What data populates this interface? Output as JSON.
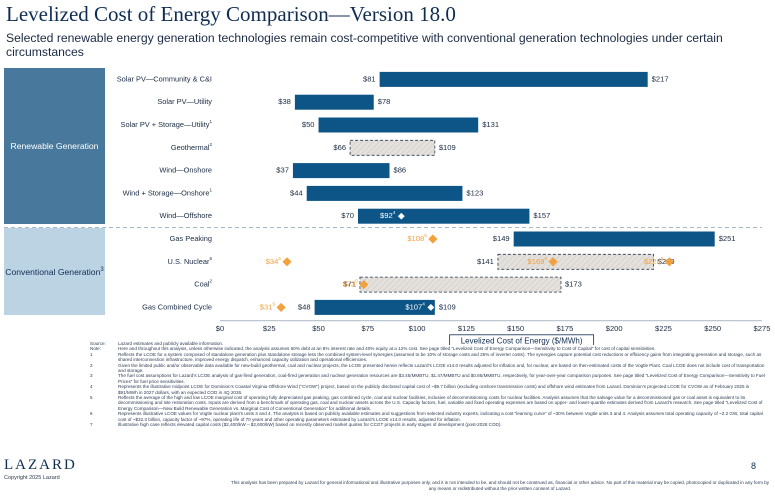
{
  "page": {
    "title": "Levelized Cost of Energy Comparison—Version 18.0",
    "subtitle": "Selected renewable energy generation technologies remain cost-competitive with conventional generation technologies under certain circumstances",
    "groups": {
      "renewable": "Renewable Generation",
      "conventional": "Conventional Generation",
      "conventional_sup": "3"
    },
    "page_number": "8",
    "logo": "LAZARD",
    "copyright": "Copyright 2025 Lazard",
    "footer": "This analysis has been prepared by Lazard for general informational and illustrative purposes only, and it is not intended to be, and should not be construed as, financial or other advice. No part of this material may be copied, photocopied or duplicated in any form by any means or redistributed without the prior written consent of Lazard."
  },
  "chart_data": {
    "type": "bar",
    "subtype": "floating-range",
    "title": "Levelized Cost of Energy Comparison—Version 18.0",
    "xlabel": "Levelized Cost of Energy ($/MWh)",
    "xlim": [
      0,
      275
    ],
    "ticks": [
      "$0",
      "$25",
      "$50",
      "$75",
      "$100",
      "$125",
      "$150",
      "$175",
      "$200",
      "$225",
      "$250",
      "$275"
    ],
    "tick_values": [
      0,
      25,
      50,
      75,
      100,
      125,
      150,
      175,
      200,
      225,
      250,
      275
    ],
    "colors": {
      "bar": "#0d5587",
      "hatched_fill": "#e2dfdb",
      "marker_diamond": "#f2a13d",
      "marker_white": "#ffffff"
    },
    "rows": [
      {
        "label": "Solar PV—Community & C&I",
        "sup": "",
        "low": 81,
        "high": 217,
        "low_label": "$81",
        "high_label": "$217",
        "style": "solid"
      },
      {
        "label": "Solar PV—Utility",
        "sup": "",
        "low": 38,
        "high": 78,
        "low_label": "$38",
        "high_label": "$78",
        "style": "solid"
      },
      {
        "label": "Solar PV + Storage—Utility",
        "sup": "1",
        "low": 50,
        "high": 131,
        "low_label": "$50",
        "high_label": "$131",
        "style": "solid"
      },
      {
        "label": "Geothermal",
        "sup": "2",
        "low": 66,
        "high": 109,
        "low_label": "$66",
        "high_label": "$109",
        "style": "dashed"
      },
      {
        "label": "Wind—Onshore",
        "sup": "",
        "low": 37,
        "high": 86,
        "low_label": "$37",
        "high_label": "$86",
        "style": "solid"
      },
      {
        "label": "Wind + Storage—Onshore",
        "sup": "1",
        "low": 44,
        "high": 123,
        "low_label": "$44",
        "high_label": "$123",
        "style": "solid"
      },
      {
        "label": "Wind—Offshore",
        "sup": "",
        "low": 70,
        "high": 157,
        "low_label": "$70",
        "high_label": "$157",
        "style": "solid",
        "markers": [
          {
            "value": 92,
            "label": "$92",
            "sup": "4",
            "kind": "white"
          }
        ]
      },
      {
        "label": "Gas Peaking",
        "sup": "",
        "low": 149,
        "high": 251,
        "low_label": "$149",
        "high_label": "$251",
        "style": "solid",
        "markers": [
          {
            "value": 108,
            "label": "$108",
            "sup": "5",
            "kind": "orange"
          }
        ]
      },
      {
        "label": "U.S. Nuclear",
        "sup": "6",
        "low": 141,
        "high": 220,
        "low_label": "$141",
        "high_label": "$220",
        "style": "dashed",
        "markers": [
          {
            "value": 34,
            "label": "$34",
            "sup": "5",
            "kind": "orange"
          },
          {
            "value": 169,
            "label": "$169",
            "sup": "6",
            "kind": "orange"
          },
          {
            "value": 228,
            "label": "$228",
            "sup": "6",
            "kind": "orange"
          }
        ]
      },
      {
        "label": "Coal",
        "sup": "2",
        "low": 71,
        "high": 173,
        "low_label": "$71",
        "high_label": "$173",
        "style": "dashed",
        "markers": [
          {
            "value": 73,
            "label": "$73",
            "sup": "5",
            "kind": "orange"
          }
        ]
      },
      {
        "label": "Gas Combined Cycle",
        "sup": "",
        "low": 48,
        "high": 109,
        "low_label": "$48",
        "high_label": "$109",
        "style": "solid",
        "markers": [
          {
            "value": 31,
            "label": "$31",
            "sup": "5",
            "kind": "orange"
          },
          {
            "value": 107,
            "label": "$107",
            "sup": "4",
            "kind": "white"
          }
        ]
      }
    ]
  },
  "notes": [
    {
      "k": "Source:",
      "v": "Lazard estimates and publicly available information."
    },
    {
      "k": "Note:",
      "v": "Here and throughout this analysis, unless otherwise indicated, the analysis assumes 60% debt at an 8% interest rate and 40% equity at a 12% cost. See page titled “Levelized Cost of Energy Comparison—Sensitivity to Cost of Capital” for cost of capital sensitivities."
    },
    {
      "k": "1",
      "v": "Reflects the LCOE for a system composed of standalone generation plus standalone storage less the combined system-level synergies (assumed to be 10% of storage costs and 25% of inverter costs). The synergies capture potential cost reductions or efficiency gains from integrating generation and storage, such as shared interconnection infrastructure, improved energy dispatch, enhanced capacity utilization and operational efficiencies."
    },
    {
      "k": "2",
      "v": "Given the limited public and/or observable data available for new-build geothermal, coal and nuclear projects, the LCOE presented herein reflects Lazard’s LCOE v14.0 results adjusted for inflation and, for nuclear, are based on then-estimated costs of the Vogtle Plant. Coal LCOE does not include cost of transportation and storage."
    },
    {
      "k": "3",
      "v": "The fuel cost assumptions for Lazard’s LCOE analysis of gas-fired generation, coal-fired generation and nuclear generation resources are $3.45/MMBTU, $1.47/MMBTU and $0.85/MMBTU, respectively, for year-over-year comparison purposes. See page titled “Levelized Cost of Energy Comparison—Sensitivity to Fuel Prices” for fuel price sensitivities."
    },
    {
      "k": "4",
      "v": "Represents the illustrative midpoint LCOE for Dominion’s Coastal Virginia Offshore Wind (“CVOW”) project, based on the publicly disclosed capital cost of ~$9.7 billion (excluding onshore transmission costs) and offshore wind estimates from Lazard. Dominion’s projected LCOE for CVOW as of February 2025 is $91/MWh in 2027 dollars, with an expected COD in 4Q 2026."
    },
    {
      "k": "5",
      "v": "Reflects the average of the high and low LCOE marginal cost of operating fully depreciated gas peaking, gas combined cycle, coal and nuclear facilities, inclusive of decommissioning costs for nuclear facilities. Analysis assumes that the salvage value for a decommissioned gas or coal asset is equivalent to its decommissioning and site restoration costs. Inputs are derived from a benchmark of operating gas, coal and nuclear assets across the U.S. Capacity factors, fuel, variable and fixed operating expenses are based on upper- and lower-quartile estimates derived from Lazard’s research. See page titled “Levelized Cost of Energy Comparison—New Build Renewable Generation vs. Marginal Cost of Conventional Generation” for additional details."
    },
    {
      "k": "6",
      "v": "Represents illustrative LCOE values for Vogtle nuclear plant’s units 3 and 4. The analysis is based on publicly available estimates and suggestions from selected industry experts, indicating a cost “learning curve” of ~30% between Vogtle units 3 and 4. Analysis assumes total operating capacity of ~2.2 GW, total capital cost of ~$32.3 billion, capacity factor of ~97%, operating life of 70 years and other operating parameters estimated by Lazard’s LCOE v14.0 results, adjusted for inflation."
    },
    {
      "k": "7",
      "v": "Illustrative high case reflects elevated capital costs ($2,400/kW – $2,600/kW) based on recently observed market quotes for CCGT projects in early stages of development (post-2028 COD)."
    }
  ]
}
